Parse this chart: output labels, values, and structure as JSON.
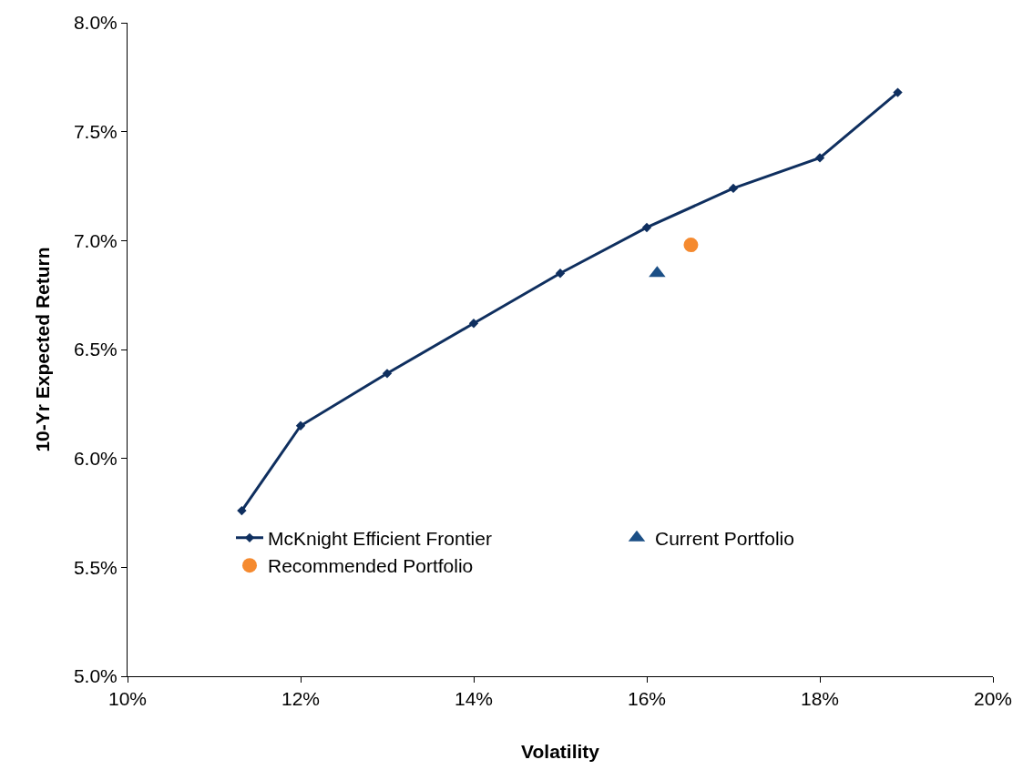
{
  "chart_data": {
    "type": "line",
    "xlabel": "Volatility",
    "ylabel": "10-Yr Expected Return",
    "series": [
      {
        "name": "McKnight Efficient Frontier",
        "color": "#0f2f5f",
        "marker": "diamond",
        "x": [
          11.32,
          12.0,
          13.0,
          14.0,
          15.0,
          16.0,
          17.0,
          18.0,
          18.9
        ],
        "values": [
          5.76,
          6.15,
          6.39,
          6.62,
          6.85,
          7.06,
          7.24,
          7.38,
          7.68
        ]
      },
      {
        "name": "Current Portfolio",
        "type": "scatter",
        "color": "#1b4f86",
        "marker": "triangle",
        "x": [
          16.12
        ],
        "values": [
          6.85
        ]
      },
      {
        "name": "Recommended Portfolio",
        "type": "scatter",
        "color": "#f58a2f",
        "marker": "circle",
        "x": [
          16.51
        ],
        "values": [
          6.98
        ]
      }
    ],
    "xlim": [
      10,
      20
    ],
    "xticks": [
      {
        "value": 10,
        "label": "10%"
      },
      {
        "value": 12,
        "label": "12%"
      },
      {
        "value": 14,
        "label": "14%"
      },
      {
        "value": 16,
        "label": "16%"
      },
      {
        "value": 18,
        "label": "18%"
      },
      {
        "value": 20,
        "label": "20%"
      }
    ],
    "ylim": [
      5,
      8
    ],
    "yticks": [
      {
        "value": 5,
        "label": "5.0%"
      },
      {
        "value": 5.5,
        "label": "5.5%"
      },
      {
        "value": 6,
        "label": "6.0%"
      },
      {
        "value": 6.5,
        "label": "6.5%"
      },
      {
        "value": 7,
        "label": "7.0%"
      },
      {
        "value": 7.5,
        "label": "7.5%"
      },
      {
        "value": 8,
        "label": "8.0%"
      }
    ],
    "legend": "bottom"
  }
}
